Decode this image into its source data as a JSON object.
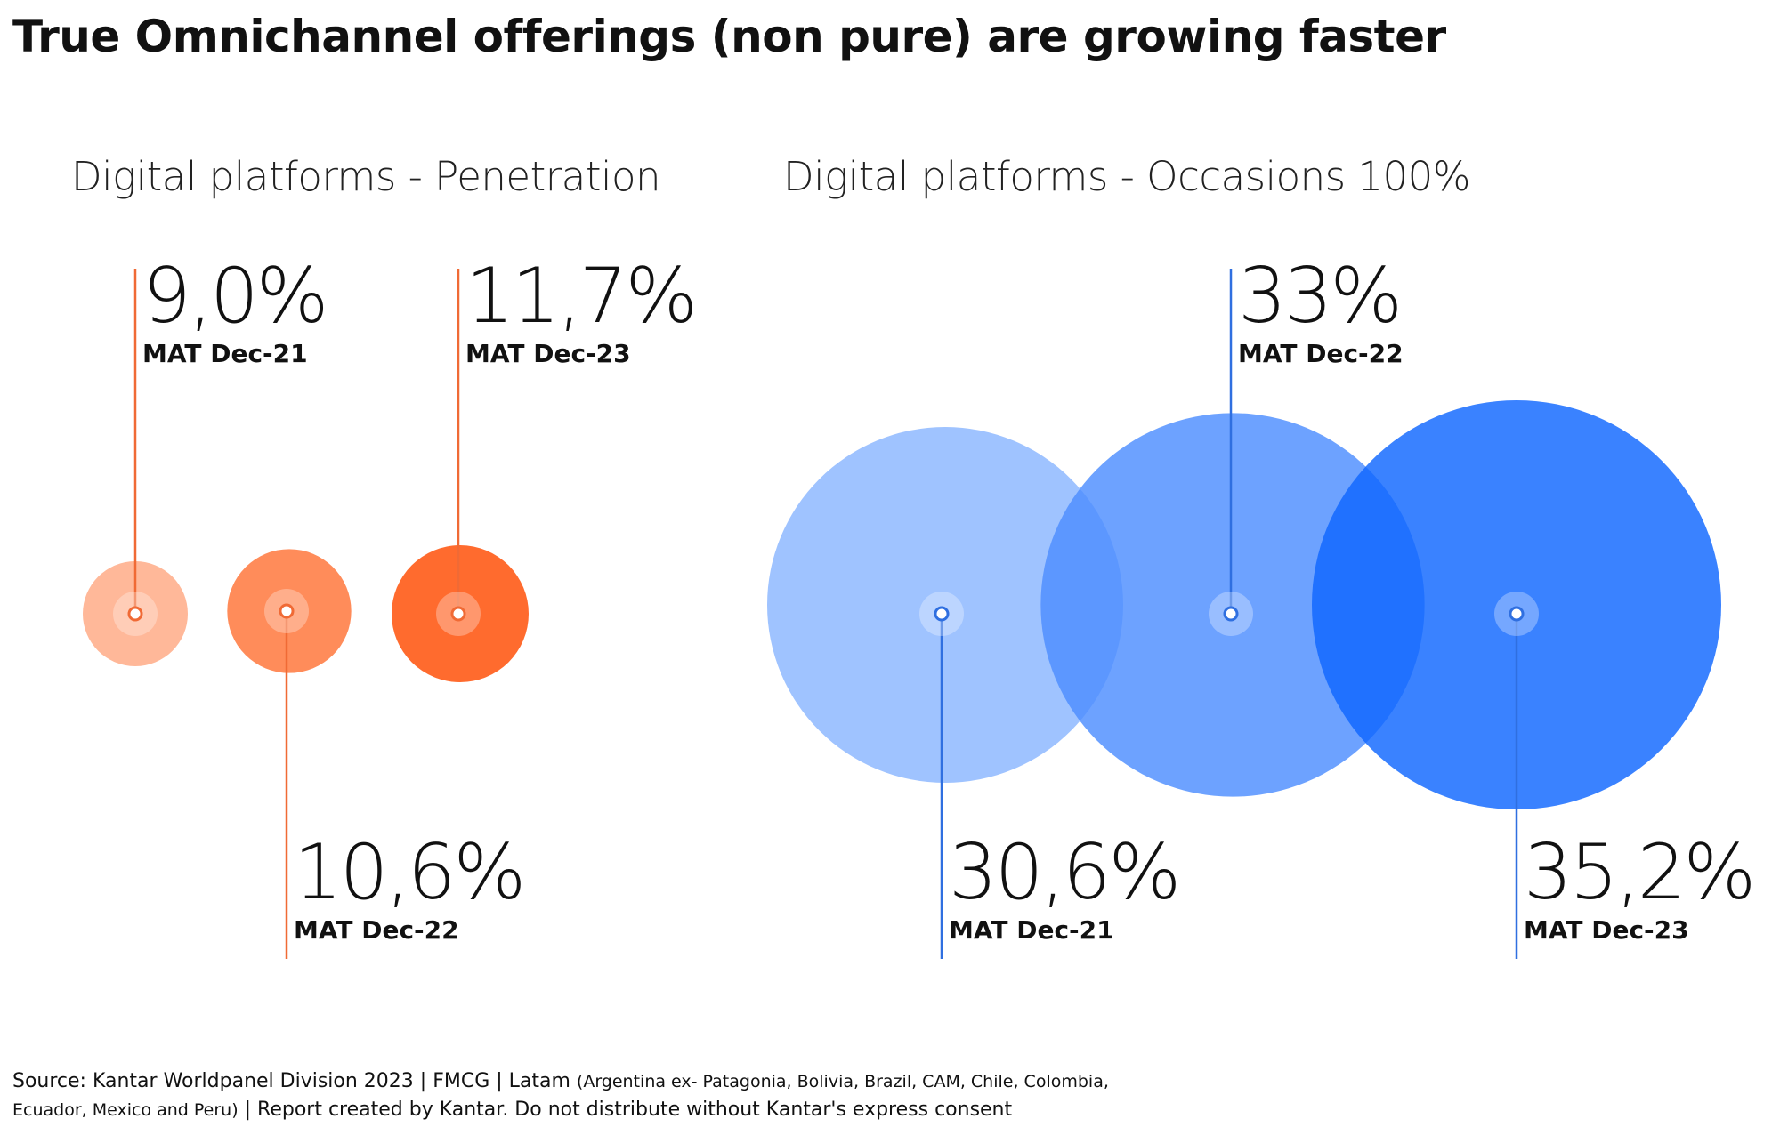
{
  "title": "True Omnichannel offerings (non pure) are growing faster",
  "source": {
    "main": "Source: Kantar Worldpanel Division 2023 | FMCG | Latam ",
    "countries_line1": "(Argentina ex- Patagonia, Bolivia, Brazil, CAM, Chile, Colombia,",
    "countries_line2": "Ecuador, Mexico and Peru)",
    "rest": " | Report created by Kantar. Do not distribute without Kantar's express consent"
  },
  "chart_data": [
    {
      "type": "bubble",
      "title": "Digital platforms - Penetration",
      "color_scale": [
        "#ffb899",
        "#ff8c5a",
        "#ff6b2e"
      ],
      "line_color": "#f06a35",
      "points": [
        {
          "label": "MAT Dec-21",
          "value": 9.0,
          "display": "9,0%"
        },
        {
          "label": "MAT Dec-22",
          "value": 10.6,
          "display": "10,6%"
        },
        {
          "label": "MAT Dec-23",
          "value": 11.7,
          "display": "11,7%"
        }
      ]
    },
    {
      "type": "bubble",
      "title": "Digital platforms - Occasions 100%",
      "color_scale": [
        "#8ab6ff",
        "#4d8eff",
        "#0f66ff"
      ],
      "line_color": "#2f6fe0",
      "points": [
        {
          "label": "MAT Dec-21",
          "value": 30.6,
          "display": "30,6%"
        },
        {
          "label": "MAT Dec-22",
          "value": 33,
          "display": "33%"
        },
        {
          "label": "MAT Dec-23",
          "value": 35.2,
          "display": "35,2%"
        }
      ]
    }
  ]
}
